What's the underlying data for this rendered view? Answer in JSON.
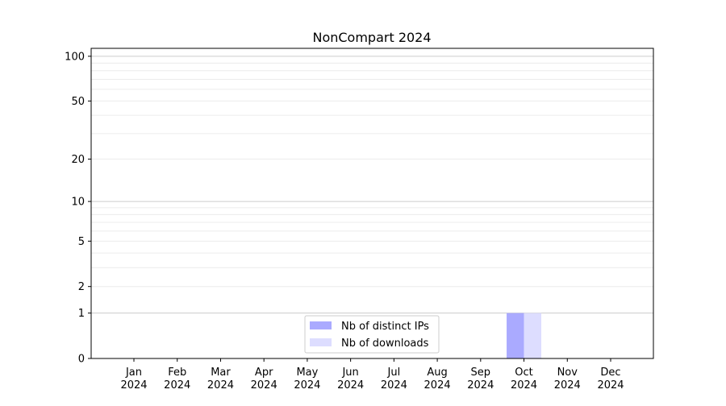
{
  "chart_data": {
    "type": "bar",
    "title": "NonCompart 2024",
    "xlabel": "",
    "ylabel": "",
    "categories": [
      "Jan\n2024",
      "Feb\n2024",
      "Mar\n2024",
      "Apr\n2024",
      "May\n2024",
      "Jun\n2024",
      "Jul\n2024",
      "Aug\n2024",
      "Sep\n2024",
      "Oct\n2024",
      "Nov\n2024",
      "Dec\n2024"
    ],
    "series": [
      {
        "name": "Nb of distinct IPs",
        "color": "#aaaaff",
        "values": [
          0,
          0,
          0,
          0,
          0,
          0,
          0,
          0,
          0,
          1,
          0,
          0
        ]
      },
      {
        "name": "Nb of downloads",
        "color": "#ddddff",
        "values": [
          0,
          0,
          0,
          0,
          0,
          0,
          0,
          0,
          0,
          1,
          0,
          0
        ]
      }
    ],
    "yscale": "log(1+y)",
    "ylim": [
      0,
      113
    ],
    "yticks": [
      0,
      1,
      2,
      5,
      10,
      20,
      50,
      100
    ],
    "major_grid": [
      1,
      10,
      100
    ],
    "minor_grid": [
      2,
      3,
      4,
      5,
      6,
      7,
      8,
      9,
      20,
      30,
      40,
      50,
      60,
      70,
      80,
      90
    ],
    "grid": true,
    "legend_position": "bottom-center"
  }
}
